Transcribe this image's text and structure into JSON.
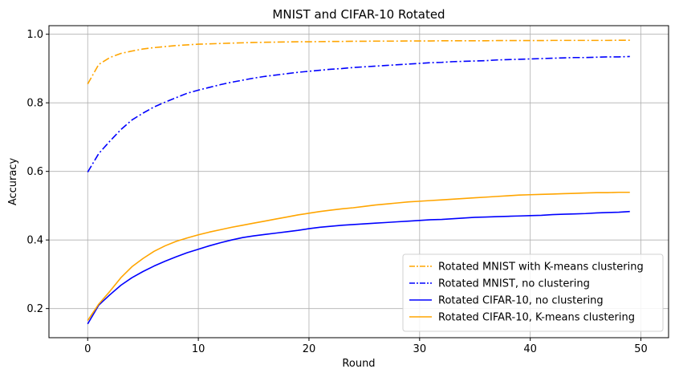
{
  "chart_data": {
    "type": "line",
    "title": "MNIST and CIFAR-10 Rotated",
    "xlabel": "Round",
    "ylabel": "Accuracy",
    "xlim": [
      -3.5,
      52.5
    ],
    "ylim": [
      0.115,
      1.025
    ],
    "xticks": [
      0,
      10,
      20,
      30,
      40,
      50
    ],
    "yticks": [
      0.2,
      0.4,
      0.6,
      0.8,
      1.0
    ],
    "xtick_labels": [
      "0",
      "10",
      "20",
      "30",
      "40",
      "50"
    ],
    "ytick_labels": [
      "0.2",
      "0.4",
      "0.6",
      "0.8",
      "1.0"
    ],
    "grid": true,
    "legend_position": "bottom-right",
    "x": [
      0,
      1,
      2,
      3,
      4,
      5,
      6,
      7,
      8,
      9,
      10,
      11,
      12,
      13,
      14,
      15,
      16,
      17,
      18,
      19,
      20,
      21,
      22,
      23,
      24,
      25,
      26,
      27,
      28,
      29,
      30,
      31,
      32,
      33,
      34,
      35,
      36,
      37,
      38,
      39,
      40,
      41,
      42,
      43,
      44,
      45,
      46,
      47,
      48,
      49
    ],
    "series": [
      {
        "name": "Rotated MNIST with K-means clustering",
        "color": "#ffa500",
        "dash": "dashdot",
        "values": [
          0.855,
          0.912,
          0.932,
          0.944,
          0.951,
          0.957,
          0.961,
          0.964,
          0.967,
          0.969,
          0.971,
          0.972,
          0.973,
          0.974,
          0.975,
          0.976,
          0.9765,
          0.977,
          0.9775,
          0.978,
          0.978,
          0.9785,
          0.979,
          0.979,
          0.9795,
          0.9795,
          0.98,
          0.98,
          0.98,
          0.9805,
          0.9805,
          0.9805,
          0.981,
          0.981,
          0.981,
          0.981,
          0.981,
          0.9815,
          0.9815,
          0.9815,
          0.9815,
          0.9815,
          0.982,
          0.982,
          0.982,
          0.982,
          0.982,
          0.982,
          0.9825,
          0.9825
        ]
      },
      {
        "name": "Rotated MNIST, no clustering",
        "color": "#0000ff",
        "dash": "dashdot",
        "values": [
          0.598,
          0.652,
          0.688,
          0.722,
          0.75,
          0.77,
          0.788,
          0.802,
          0.815,
          0.828,
          0.837,
          0.845,
          0.853,
          0.86,
          0.866,
          0.872,
          0.877,
          0.881,
          0.885,
          0.889,
          0.892,
          0.895,
          0.898,
          0.9,
          0.903,
          0.905,
          0.907,
          0.909,
          0.911,
          0.913,
          0.915,
          0.917,
          0.918,
          0.92,
          0.921,
          0.922,
          0.923,
          0.925,
          0.926,
          0.927,
          0.928,
          0.929,
          0.93,
          0.931,
          0.932,
          0.932,
          0.933,
          0.934,
          0.934,
          0.935
        ]
      },
      {
        "name": "Rotated CIFAR-10, no clustering",
        "color": "#0000ff",
        "dash": "solid",
        "values": [
          0.155,
          0.21,
          0.24,
          0.268,
          0.29,
          0.308,
          0.324,
          0.338,
          0.351,
          0.363,
          0.373,
          0.383,
          0.392,
          0.4,
          0.407,
          0.412,
          0.416,
          0.42,
          0.424,
          0.428,
          0.433,
          0.437,
          0.44,
          0.443,
          0.445,
          0.447,
          0.449,
          0.451,
          0.453,
          0.455,
          0.457,
          0.459,
          0.46,
          0.462,
          0.464,
          0.466,
          0.467,
          0.468,
          0.469,
          0.47,
          0.471,
          0.472,
          0.474,
          0.475,
          0.476,
          0.477,
          0.479,
          0.48,
          0.481,
          0.483
        ]
      },
      {
        "name": "Rotated CIFAR-10, K-means clustering",
        "color": "#ffa500",
        "dash": "solid",
        "values": [
          0.165,
          0.213,
          0.25,
          0.29,
          0.322,
          0.346,
          0.367,
          0.383,
          0.396,
          0.406,
          0.415,
          0.423,
          0.43,
          0.437,
          0.443,
          0.449,
          0.455,
          0.461,
          0.467,
          0.473,
          0.478,
          0.483,
          0.487,
          0.491,
          0.494,
          0.498,
          0.502,
          0.505,
          0.508,
          0.511,
          0.513,
          0.515,
          0.517,
          0.519,
          0.521,
          0.523,
          0.525,
          0.527,
          0.529,
          0.531,
          0.532,
          0.533,
          0.534,
          0.535,
          0.536,
          0.537,
          0.538,
          0.538,
          0.539,
          0.539
        ]
      }
    ]
  }
}
